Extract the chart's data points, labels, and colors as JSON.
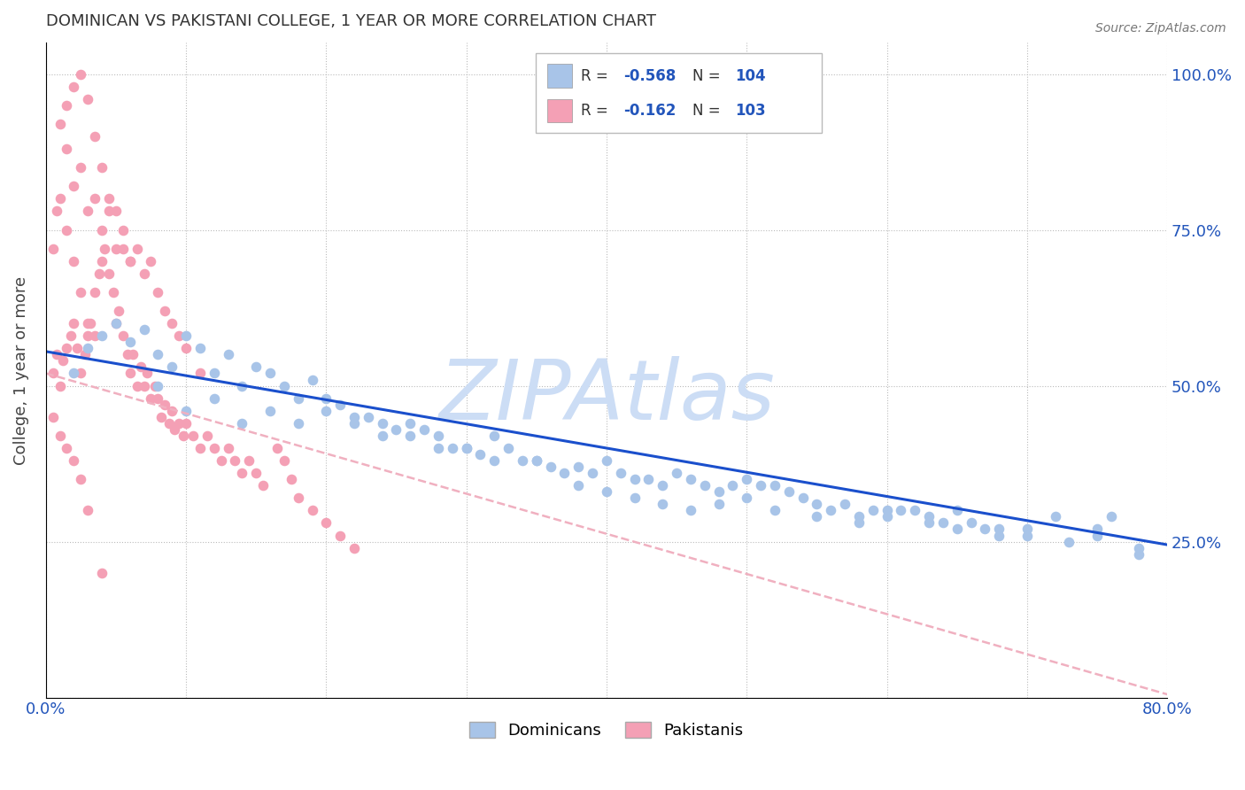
{
  "title": "DOMINICAN VS PAKISTANI COLLEGE, 1 YEAR OR MORE CORRELATION CHART",
  "source": "Source: ZipAtlas.com",
  "ylabel": "College, 1 year or more",
  "dominicans_R": "-0.568",
  "dominicans_N": "104",
  "pakistanis_R": "-0.162",
  "pakistanis_N": "103",
  "dominicans_color": "#a8c4e8",
  "pakistanis_color": "#f4a0b5",
  "dominicans_line_color": "#1a4fcc",
  "pakistanis_line_color": "#f0b0c0",
  "watermark": "ZIPAtlas",
  "watermark_color": "#ccddf5",
  "xlim": [
    0.0,
    0.8
  ],
  "ylim": [
    0.0,
    1.05
  ],
  "dom_line_x0": 0.0,
  "dom_line_y0": 0.555,
  "dom_line_x1": 0.8,
  "dom_line_y1": 0.245,
  "pak_line_x0": 0.0,
  "pak_line_y0": 0.52,
  "pak_line_x1": 0.8,
  "pak_line_y1": 0.005,
  "dominicans_x": [
    0.02,
    0.03,
    0.04,
    0.05,
    0.06,
    0.07,
    0.08,
    0.09,
    0.1,
    0.11,
    0.12,
    0.13,
    0.14,
    0.15,
    0.16,
    0.17,
    0.18,
    0.19,
    0.2,
    0.21,
    0.22,
    0.23,
    0.24,
    0.25,
    0.26,
    0.27,
    0.28,
    0.29,
    0.3,
    0.31,
    0.32,
    0.33,
    0.34,
    0.35,
    0.36,
    0.37,
    0.38,
    0.39,
    0.4,
    0.41,
    0.42,
    0.43,
    0.44,
    0.45,
    0.46,
    0.47,
    0.48,
    0.49,
    0.5,
    0.51,
    0.52,
    0.53,
    0.54,
    0.55,
    0.56,
    0.57,
    0.58,
    0.59,
    0.6,
    0.61,
    0.62,
    0.63,
    0.64,
    0.65,
    0.66,
    0.67,
    0.68,
    0.7,
    0.72,
    0.75,
    0.76,
    0.78,
    0.08,
    0.1,
    0.12,
    0.14,
    0.16,
    0.18,
    0.2,
    0.22,
    0.24,
    0.26,
    0.28,
    0.3,
    0.32,
    0.35,
    0.38,
    0.4,
    0.42,
    0.44,
    0.46,
    0.48,
    0.5,
    0.52,
    0.55,
    0.58,
    0.6,
    0.63,
    0.65,
    0.68,
    0.7,
    0.73,
    0.75,
    0.78
  ],
  "dominicans_y": [
    0.52,
    0.56,
    0.58,
    0.6,
    0.57,
    0.59,
    0.55,
    0.53,
    0.58,
    0.56,
    0.52,
    0.55,
    0.5,
    0.53,
    0.52,
    0.5,
    0.48,
    0.51,
    0.48,
    0.47,
    0.45,
    0.45,
    0.44,
    0.43,
    0.44,
    0.43,
    0.42,
    0.4,
    0.4,
    0.39,
    0.42,
    0.4,
    0.38,
    0.38,
    0.37,
    0.36,
    0.37,
    0.36,
    0.38,
    0.36,
    0.35,
    0.35,
    0.34,
    0.36,
    0.35,
    0.34,
    0.33,
    0.34,
    0.35,
    0.34,
    0.34,
    0.33,
    0.32,
    0.31,
    0.3,
    0.31,
    0.29,
    0.3,
    0.29,
    0.3,
    0.3,
    0.29,
    0.28,
    0.3,
    0.28,
    0.27,
    0.27,
    0.27,
    0.29,
    0.27,
    0.29,
    0.24,
    0.5,
    0.46,
    0.48,
    0.44,
    0.46,
    0.44,
    0.46,
    0.44,
    0.42,
    0.42,
    0.4,
    0.4,
    0.38,
    0.38,
    0.34,
    0.33,
    0.32,
    0.31,
    0.3,
    0.31,
    0.32,
    0.3,
    0.29,
    0.28,
    0.3,
    0.28,
    0.27,
    0.26,
    0.26,
    0.25,
    0.26,
    0.23
  ],
  "pakistanis_x": [
    0.005,
    0.008,
    0.01,
    0.012,
    0.015,
    0.018,
    0.02,
    0.022,
    0.025,
    0.028,
    0.03,
    0.032,
    0.035,
    0.038,
    0.04,
    0.042,
    0.045,
    0.048,
    0.05,
    0.052,
    0.055,
    0.058,
    0.06,
    0.062,
    0.065,
    0.068,
    0.07,
    0.072,
    0.075,
    0.078,
    0.08,
    0.082,
    0.085,
    0.088,
    0.09,
    0.092,
    0.095,
    0.098,
    0.1,
    0.105,
    0.11,
    0.115,
    0.12,
    0.125,
    0.13,
    0.135,
    0.14,
    0.145,
    0.15,
    0.155,
    0.01,
    0.015,
    0.02,
    0.025,
    0.03,
    0.035,
    0.04,
    0.045,
    0.05,
    0.055,
    0.06,
    0.065,
    0.07,
    0.075,
    0.08,
    0.085,
    0.09,
    0.095,
    0.1,
    0.11,
    0.015,
    0.02,
    0.025,
    0.03,
    0.035,
    0.04,
    0.045,
    0.05,
    0.055,
    0.06,
    0.005,
    0.008,
    0.01,
    0.015,
    0.02,
    0.025,
    0.03,
    0.035,
    0.165,
    0.17,
    0.175,
    0.18,
    0.19,
    0.2,
    0.21,
    0.22,
    0.005,
    0.01,
    0.015,
    0.02,
    0.025,
    0.03,
    0.04
  ],
  "pakistanis_y": [
    0.52,
    0.55,
    0.5,
    0.54,
    0.56,
    0.58,
    0.6,
    0.56,
    0.52,
    0.55,
    0.58,
    0.6,
    0.65,
    0.68,
    0.7,
    0.72,
    0.68,
    0.65,
    0.6,
    0.62,
    0.58,
    0.55,
    0.52,
    0.55,
    0.5,
    0.53,
    0.5,
    0.52,
    0.48,
    0.5,
    0.48,
    0.45,
    0.47,
    0.44,
    0.46,
    0.43,
    0.44,
    0.42,
    0.44,
    0.42,
    0.4,
    0.42,
    0.4,
    0.38,
    0.4,
    0.38,
    0.36,
    0.38,
    0.36,
    0.34,
    0.92,
    0.88,
    0.82,
    0.85,
    0.78,
    0.8,
    0.75,
    0.78,
    0.72,
    0.75,
    0.7,
    0.72,
    0.68,
    0.7,
    0.65,
    0.62,
    0.6,
    0.58,
    0.56,
    0.52,
    0.95,
    0.98,
    1.0,
    0.96,
    0.9,
    0.85,
    0.8,
    0.78,
    0.72,
    0.7,
    0.72,
    0.78,
    0.8,
    0.75,
    0.7,
    0.65,
    0.6,
    0.58,
    0.4,
    0.38,
    0.35,
    0.32,
    0.3,
    0.28,
    0.26,
    0.24,
    0.45,
    0.42,
    0.4,
    0.38,
    0.35,
    0.3,
    0.2
  ]
}
